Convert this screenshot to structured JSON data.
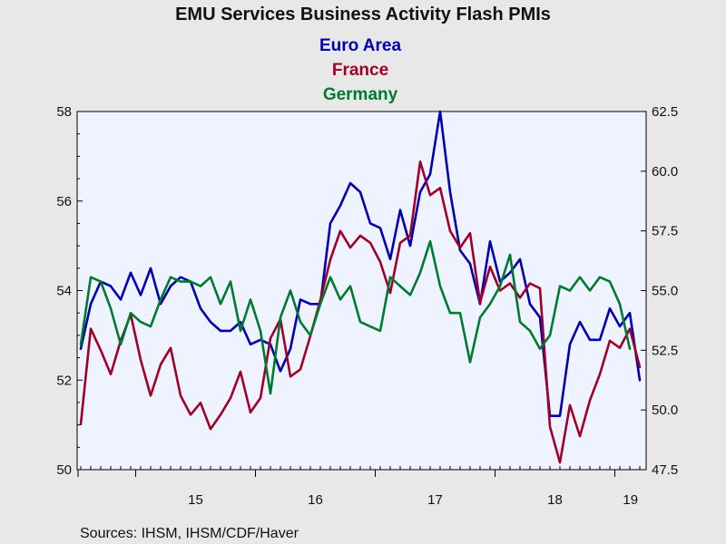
{
  "chart_data": {
    "type": "line",
    "title": "EMU Services Business Activity Flash PMIs",
    "source": "Sources:  IHSM, IHSM/CDF/Haver",
    "x_start": "2014-07",
    "x_ticks": [
      "15",
      "16",
      "17",
      "18",
      "19"
    ],
    "left_axis": {
      "min": 50,
      "max": 58,
      "ticks": [
        "50",
        "52",
        "54",
        "56",
        "58"
      ]
    },
    "right_axis": {
      "min": 47.5,
      "max": 62.5,
      "ticks": [
        "47.5",
        "50.0",
        "52.5",
        "55.0",
        "57.5",
        "60.0",
        "62.5"
      ]
    },
    "grid": false,
    "legend_position": "top-center",
    "series": [
      {
        "name": "Euro Area",
        "axis": "left",
        "color": "#0000b0",
        "values": [
          52.7,
          53.7,
          54.2,
          54.1,
          53.8,
          54.4,
          53.9,
          54.5,
          53.7,
          54.1,
          54.3,
          54.2,
          53.6,
          53.3,
          53.1,
          53.1,
          53.3,
          52.8,
          52.9,
          52.8,
          52.2,
          52.7,
          53.8,
          53.7,
          53.7,
          55.5,
          55.9,
          56.4,
          56.2,
          55.5,
          55.4,
          54.7,
          55.8,
          55.0,
          56.2,
          56.6,
          58.0,
          56.2,
          54.9,
          54.6,
          53.7,
          55.1,
          54.2,
          54.4,
          54.7,
          53.7,
          53.4,
          51.2,
          51.2,
          52.8,
          53.3,
          52.9,
          52.9,
          53.6,
          53.2,
          53.5,
          52.0
        ]
      },
      {
        "name": "France",
        "axis": "right",
        "color": "#a00028",
        "values": [
          49.4,
          53.4,
          52.5,
          51.5,
          52.9,
          54.0,
          52.1,
          50.6,
          51.9,
          52.6,
          50.6,
          49.8,
          50.3,
          49.2,
          49.8,
          50.5,
          51.6,
          49.9,
          50.5,
          53.0,
          53.8,
          51.4,
          51.7,
          53.1,
          54.6,
          56.3,
          57.5,
          56.8,
          57.3,
          57.0,
          56.2,
          54.9,
          57.0,
          57.3,
          60.4,
          59.0,
          59.3,
          57.5,
          56.8,
          57.4,
          54.5,
          56.0,
          55.0,
          55.3,
          54.7,
          55.3,
          55.1,
          49.3,
          47.8,
          50.2,
          48.9,
          50.4,
          51.5,
          52.9,
          52.6,
          53.4,
          51.8
        ]
      },
      {
        "name": "Germany",
        "axis": "left",
        "color": "#007a30",
        "values": [
          52.8,
          54.3,
          54.2,
          53.6,
          52.8,
          53.5,
          53.3,
          53.2,
          53.8,
          54.3,
          54.2,
          54.2,
          54.1,
          54.3,
          53.7,
          54.2,
          53.1,
          53.8,
          53.1,
          51.7,
          53.4,
          54.0,
          53.3,
          53.0,
          53.7,
          54.3,
          53.8,
          54.1,
          53.3,
          53.2,
          53.1,
          54.3,
          54.1,
          53.9,
          54.4,
          55.1,
          54.1,
          53.5,
          53.5,
          52.4,
          53.4,
          53.7,
          54.1,
          54.8,
          53.3,
          53.1,
          52.7,
          53.0,
          54.1,
          54.0,
          54.3,
          54.0,
          54.3,
          54.2,
          53.7,
          52.7
        ]
      }
    ]
  }
}
